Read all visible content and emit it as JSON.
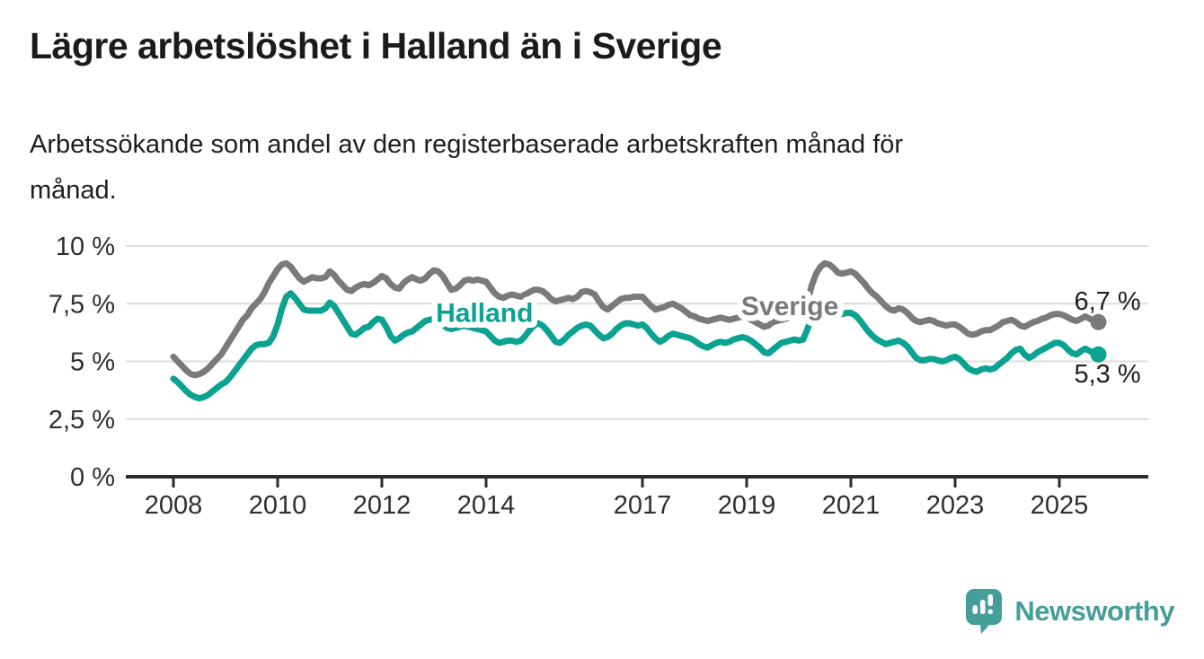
{
  "header": {
    "title": "Lägre arbetslöshet i Halland än i Sverige",
    "subtitle_line1": "Arbetssökande som andel av den registerbaserade arbetskraften månad för",
    "subtitle_line2": "månad."
  },
  "chart_data": {
    "type": "line",
    "unit": "%",
    "x_start": "2008-01",
    "x_end": "2025-10",
    "points_per_year": 12,
    "ylim": [
      0,
      10
    ],
    "grid": true,
    "legend_position": "inline-labels",
    "y_ticks": [
      {
        "value": 0,
        "label": "0 %"
      },
      {
        "value": 2.5,
        "label": "2,5 %"
      },
      {
        "value": 5,
        "label": "5 %"
      },
      {
        "value": 7.5,
        "label": "7,5 %"
      },
      {
        "value": 10,
        "label": "10 %"
      }
    ],
    "x_ticks": [
      {
        "year": 2008,
        "label": "2008"
      },
      {
        "year": 2010,
        "label": "2010"
      },
      {
        "year": 2012,
        "label": "2012"
      },
      {
        "year": 2014,
        "label": "2014"
      },
      {
        "year": 2017,
        "label": "2017"
      },
      {
        "year": 2019,
        "label": "2019"
      },
      {
        "year": 2021,
        "label": "2021"
      },
      {
        "year": 2023,
        "label": "2023"
      },
      {
        "year": 2025,
        "label": "2025"
      }
    ],
    "series": [
      {
        "name": "Sverige",
        "color": "#7a7a7a",
        "end_label": "6,7 %",
        "end_value": 6.7,
        "inline_label": {
          "year": 2019.83,
          "value": 7.4
        },
        "values": [
          5.2,
          5.0,
          4.8,
          4.6,
          4.45,
          4.4,
          4.45,
          4.55,
          4.7,
          4.9,
          5.1,
          5.3,
          5.6,
          5.9,
          6.2,
          6.5,
          6.8,
          7.0,
          7.3,
          7.5,
          7.7,
          8.0,
          8.4,
          8.7,
          9.0,
          9.2,
          9.25,
          9.1,
          8.85,
          8.6,
          8.45,
          8.55,
          8.65,
          8.6,
          8.6,
          8.65,
          8.9,
          8.75,
          8.5,
          8.3,
          8.1,
          8.05,
          8.2,
          8.3,
          8.35,
          8.3,
          8.4,
          8.55,
          8.7,
          8.6,
          8.35,
          8.2,
          8.15,
          8.4,
          8.55,
          8.65,
          8.55,
          8.5,
          8.6,
          8.8,
          8.95,
          8.9,
          8.7,
          8.4,
          8.1,
          8.15,
          8.3,
          8.5,
          8.55,
          8.5,
          8.55,
          8.5,
          8.45,
          8.2,
          7.95,
          7.8,
          7.75,
          7.85,
          7.9,
          7.85,
          7.8,
          7.9,
          8.0,
          8.1,
          8.1,
          8.05,
          7.9,
          7.7,
          7.6,
          7.65,
          7.7,
          7.75,
          7.7,
          7.8,
          8.0,
          8.05,
          8.0,
          7.9,
          7.6,
          7.35,
          7.25,
          7.4,
          7.55,
          7.7,
          7.75,
          7.75,
          7.8,
          7.8,
          7.8,
          7.6,
          7.4,
          7.25,
          7.3,
          7.35,
          7.45,
          7.5,
          7.4,
          7.3,
          7.15,
          7.0,
          6.95,
          6.85,
          6.8,
          6.75,
          6.8,
          6.85,
          6.9,
          6.85,
          6.8,
          6.85,
          6.9,
          6.95,
          6.9,
          6.8,
          6.7,
          6.6,
          6.5,
          6.55,
          6.7,
          6.75,
          6.8,
          6.85,
          6.9,
          7.0,
          7.1,
          7.2,
          7.6,
          8.3,
          8.8,
          9.1,
          9.25,
          9.2,
          9.05,
          8.85,
          8.8,
          8.85,
          8.9,
          8.8,
          8.6,
          8.4,
          8.15,
          7.95,
          7.8,
          7.6,
          7.4,
          7.25,
          7.2,
          7.3,
          7.25,
          7.1,
          6.9,
          6.75,
          6.7,
          6.75,
          6.8,
          6.75,
          6.65,
          6.6,
          6.55,
          6.6,
          6.6,
          6.5,
          6.35,
          6.2,
          6.15,
          6.2,
          6.3,
          6.35,
          6.35,
          6.45,
          6.55,
          6.7,
          6.75,
          6.8,
          6.7,
          6.55,
          6.5,
          6.6,
          6.7,
          6.75,
          6.85,
          6.9,
          7.0,
          7.05,
          7.05,
          7.0,
          6.9,
          6.8,
          6.75,
          6.85,
          6.95,
          6.85,
          6.75,
          6.7
        ]
      },
      {
        "name": "Halland",
        "color": "#0ba291",
        "end_label": "5,3 %",
        "end_value": 5.3,
        "inline_label": {
          "year": 2013.97,
          "value": 7.1
        },
        "values": [
          4.25,
          4.1,
          3.9,
          3.7,
          3.55,
          3.45,
          3.4,
          3.45,
          3.55,
          3.7,
          3.85,
          4.0,
          4.1,
          4.3,
          4.55,
          4.8,
          5.05,
          5.3,
          5.55,
          5.7,
          5.75,
          5.75,
          5.8,
          6.1,
          6.6,
          7.3,
          7.8,
          7.95,
          7.75,
          7.5,
          7.25,
          7.2,
          7.2,
          7.2,
          7.2,
          7.3,
          7.55,
          7.4,
          7.1,
          6.8,
          6.5,
          6.2,
          6.15,
          6.3,
          6.45,
          6.5,
          6.7,
          6.85,
          6.8,
          6.5,
          6.1,
          5.9,
          6.0,
          6.15,
          6.25,
          6.3,
          6.45,
          6.6,
          6.75,
          6.8,
          6.85,
          6.8,
          6.6,
          6.45,
          6.4,
          6.45,
          6.5,
          6.55,
          6.5,
          6.45,
          6.4,
          6.35,
          6.3,
          6.1,
          5.9,
          5.8,
          5.85,
          5.9,
          5.9,
          5.85,
          5.9,
          6.1,
          6.35,
          6.55,
          6.65,
          6.55,
          6.35,
          6.1,
          5.85,
          5.8,
          5.95,
          6.15,
          6.3,
          6.45,
          6.55,
          6.6,
          6.55,
          6.35,
          6.15,
          6.0,
          6.05,
          6.2,
          6.4,
          6.55,
          6.65,
          6.65,
          6.6,
          6.55,
          6.6,
          6.45,
          6.2,
          6.0,
          5.85,
          5.95,
          6.1,
          6.2,
          6.15,
          6.1,
          6.05,
          6.0,
          5.9,
          5.75,
          5.65,
          5.6,
          5.7,
          5.8,
          5.85,
          5.8,
          5.85,
          5.95,
          6.0,
          6.05,
          6.0,
          5.9,
          5.75,
          5.6,
          5.4,
          5.35,
          5.5,
          5.65,
          5.8,
          5.85,
          5.9,
          5.95,
          5.9,
          5.95,
          6.4,
          6.9,
          7.1,
          7.2,
          7.25,
          7.2,
          7.1,
          7.05,
          7.05,
          7.1,
          7.1,
          7.0,
          6.8,
          6.55,
          6.3,
          6.1,
          5.95,
          5.85,
          5.75,
          5.8,
          5.85,
          5.9,
          5.8,
          5.65,
          5.4,
          5.15,
          5.05,
          5.05,
          5.1,
          5.1,
          5.05,
          5.0,
          5.05,
          5.15,
          5.2,
          5.1,
          4.9,
          4.7,
          4.6,
          4.55,
          4.65,
          4.7,
          4.65,
          4.7,
          4.85,
          5.0,
          5.15,
          5.35,
          5.5,
          5.55,
          5.3,
          5.15,
          5.25,
          5.4,
          5.5,
          5.6,
          5.7,
          5.8,
          5.8,
          5.7,
          5.5,
          5.35,
          5.3,
          5.45,
          5.55,
          5.45,
          5.35,
          5.3
        ]
      }
    ],
    "style": {
      "gridline_color": "#dedede",
      "axis_color": "#2d2d2d",
      "end_label_color": "#1f1f1f"
    }
  },
  "footer": {
    "brand": "Newsworthy",
    "brand_color": "#459e9a",
    "logo_icon": "newsworthy-speech-bubble-chart-icon"
  }
}
